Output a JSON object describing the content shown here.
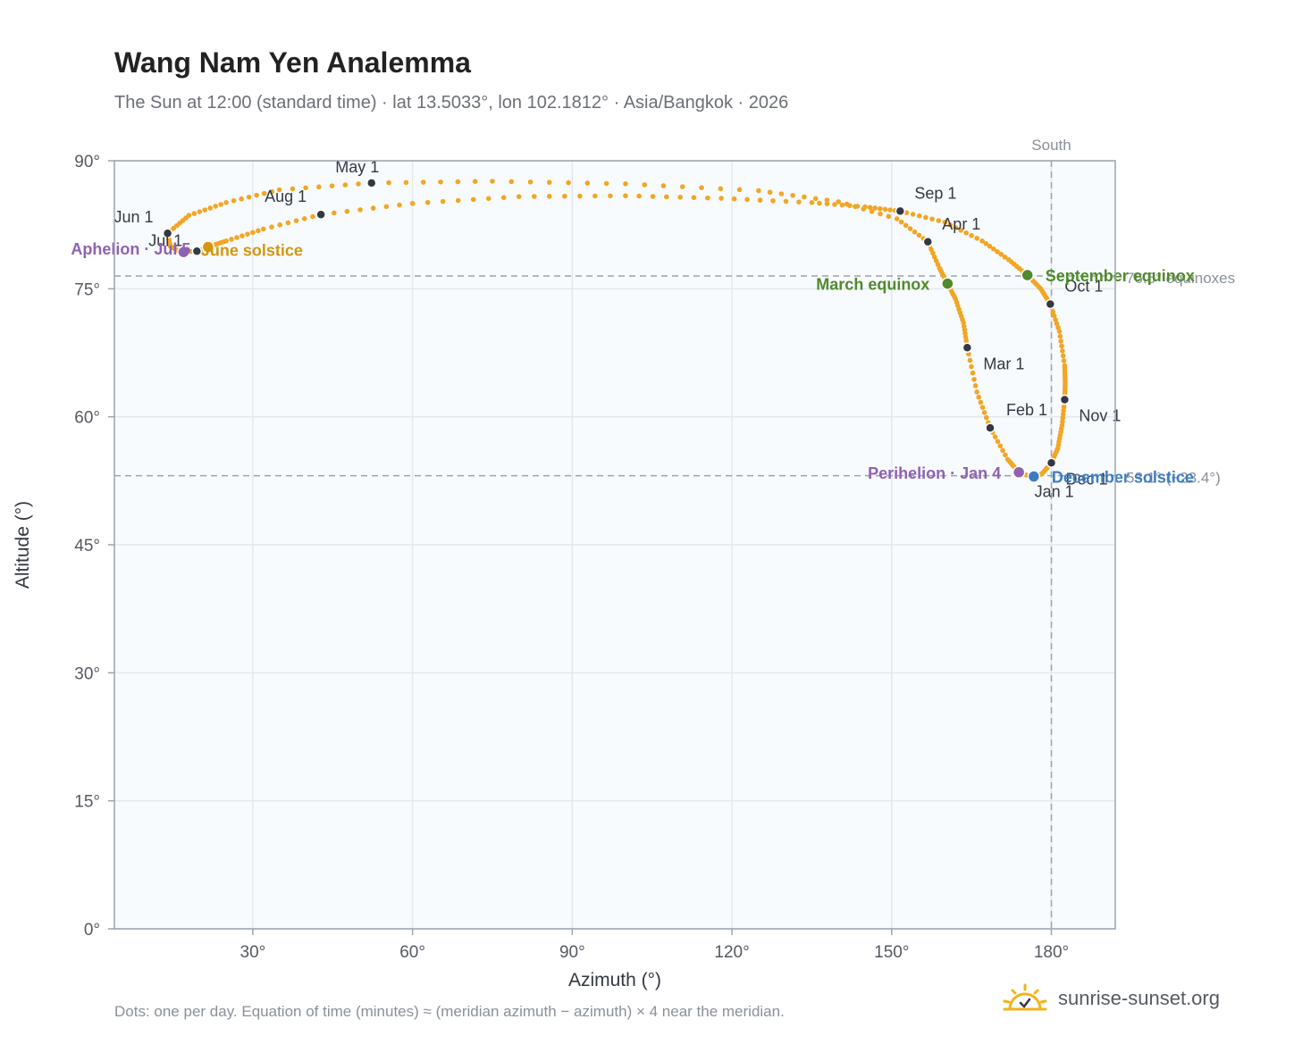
{
  "header": {
    "title": "Wang Nam Yen Analemma",
    "subtitle": "The Sun at 12:00 (standard time) · lat 13.5033°, lon 102.1812° · Asia/Bangkok · 2026"
  },
  "footer": {
    "note": "Dots: one per day. Equation of time (minutes) ≈ (meridian azimuth − azimuth) × 4 near the meridian.",
    "brand": "sunrise-sunset.org",
    "brand_icon": "sun-icon"
  },
  "colors": {
    "plot_bg": "#f8fbfe",
    "grid": "#e3e8ee",
    "axis": "#9aa3ad",
    "curve": "#f2a623",
    "month_dot": "#333842",
    "equinox": "#4f8a2c",
    "aphelion": "#8e62b3",
    "june_solstice": "#d4960f",
    "december_solstice": "#3e7cc0",
    "reference": "#9aa3ad"
  },
  "chart_data": {
    "type": "scatter",
    "xlabel": "Azimuth (°)",
    "ylabel": "Altitude (°)",
    "xlim": [
      4,
      192
    ],
    "ylim": [
      0,
      90
    ],
    "xticks": [
      30,
      60,
      90,
      120,
      150,
      180
    ],
    "yticks": [
      0,
      15,
      30,
      45,
      60,
      75,
      90
    ],
    "tick_suffix": "°",
    "grid": true,
    "reference_lines": [
      {
        "axis": "x",
        "value": 180,
        "label": "South"
      },
      {
        "axis": "y",
        "value": 76.5,
        "label": "76.5° equinoxes"
      },
      {
        "axis": "y",
        "value": 53.1,
        "label": "53.1° (−23.4°)"
      }
    ],
    "month_points": [
      {
        "label": "Jan 1",
        "az": 176.5,
        "alt": 52.9
      },
      {
        "label": "Feb 1",
        "az": 168.5,
        "alt": 58.7
      },
      {
        "label": "Mar 1",
        "az": 164.2,
        "alt": 68.1
      },
      {
        "label": "Apr 1",
        "az": 156.8,
        "alt": 80.5
      },
      {
        "label": "May 1",
        "az": 52.3,
        "alt": 87.4
      },
      {
        "label": "Jun 1",
        "az": 14.0,
        "alt": 81.5
      },
      {
        "label": "Jul 1",
        "az": 19.5,
        "alt": 79.4
      },
      {
        "label": "Aug 1",
        "az": 42.8,
        "alt": 83.7
      },
      {
        "label": "Sep 1",
        "az": 151.6,
        "alt": 84.1
      },
      {
        "label": "Oct 1",
        "az": 179.8,
        "alt": 73.2
      },
      {
        "label": "Nov 1",
        "az": 182.5,
        "alt": 62.0
      },
      {
        "label": "Dec 1",
        "az": 180.0,
        "alt": 54.6
      }
    ],
    "events": [
      {
        "label": "March equinox",
        "az": 160.5,
        "alt": 75.6,
        "color": "#4f8a2c"
      },
      {
        "label": "September equinox",
        "az": 175.5,
        "alt": 76.6,
        "color": "#4f8a2c"
      },
      {
        "label": "Aphelion · Jul 5",
        "az": 17.0,
        "alt": 79.3,
        "color": "#8e62b3"
      },
      {
        "label": "June solstice",
        "az": 21.6,
        "alt": 79.9,
        "color": "#d4960f"
      },
      {
        "label": "Perihelion · Jan 4",
        "az": 173.9,
        "alt": 53.5,
        "color": "#8e62b3"
      },
      {
        "label": "December solstice",
        "az": 176.7,
        "alt": 53.0,
        "color": "#3e7cc0"
      }
    ],
    "path_points": [
      [
        176.5,
        52.9
      ],
      [
        173.9,
        53.5
      ],
      [
        171.8,
        55.0
      ],
      [
        168.5,
        58.7
      ],
      [
        166.0,
        62.9
      ],
      [
        164.2,
        68.1
      ],
      [
        163.5,
        71.0
      ],
      [
        162.0,
        73.8
      ],
      [
        160.5,
        75.6
      ],
      [
        159.0,
        77.4
      ],
      [
        156.8,
        80.5
      ],
      [
        151.0,
        83.2
      ],
      [
        140.0,
        85.2
      ],
      [
        125.0,
        86.5
      ],
      [
        100.0,
        87.3
      ],
      [
        75.0,
        87.6
      ],
      [
        52.3,
        87.4
      ],
      [
        35.0,
        86.6
      ],
      [
        25.0,
        85.1
      ],
      [
        18.0,
        83.6
      ],
      [
        14.0,
        81.5
      ],
      [
        14.5,
        80.0
      ],
      [
        16.5,
        79.3
      ],
      [
        19.5,
        79.4
      ],
      [
        21.6,
        79.9
      ],
      [
        25.0,
        80.6
      ],
      [
        32.0,
        82.0
      ],
      [
        42.8,
        83.7
      ],
      [
        60.0,
        85.0
      ],
      [
        80.0,
        85.8
      ],
      [
        100.0,
        85.9
      ],
      [
        118.0,
        85.6
      ],
      [
        135.0,
        85.1
      ],
      [
        145.0,
        84.6
      ],
      [
        151.6,
        84.1
      ],
      [
        160.0,
        82.8
      ],
      [
        167.0,
        80.6
      ],
      [
        172.0,
        78.4
      ],
      [
        175.5,
        76.6
      ],
      [
        178.0,
        75.0
      ],
      [
        179.8,
        73.2
      ],
      [
        181.5,
        70.0
      ],
      [
        182.5,
        66.0
      ],
      [
        182.6,
        64.0
      ],
      [
        182.5,
        62.0
      ],
      [
        182.0,
        59.0
      ],
      [
        181.2,
        56.3
      ],
      [
        180.0,
        54.6
      ],
      [
        178.2,
        53.3
      ],
      [
        176.5,
        52.9
      ]
    ]
  }
}
